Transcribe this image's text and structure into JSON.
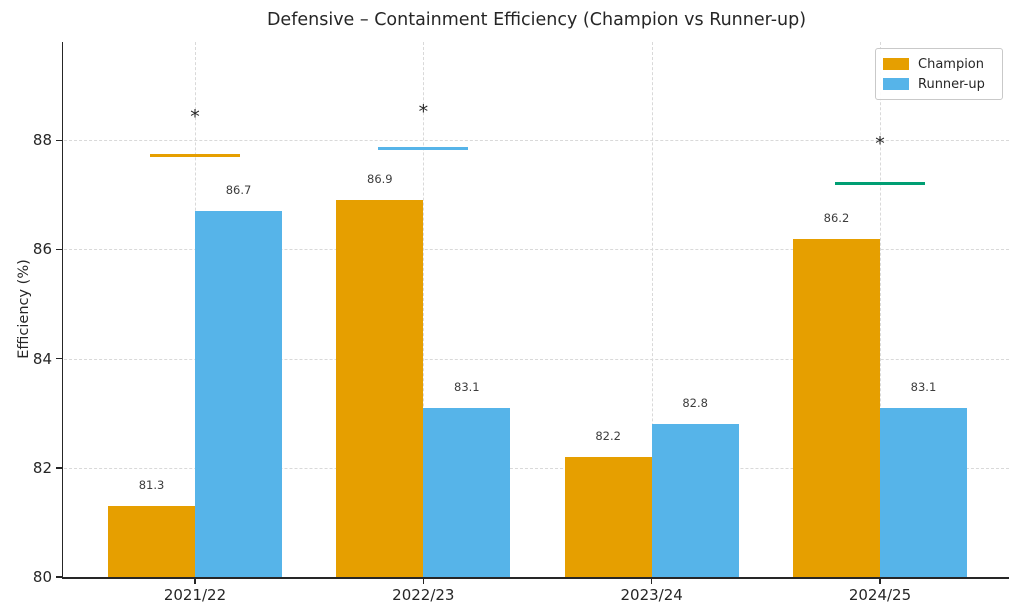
{
  "title": "Defensive – Containment Efficiency (Champion vs Runner-up)",
  "chart_data": {
    "type": "bar",
    "title": "Defensive – Containment Efficiency (Champion vs Runner-up)",
    "categories": [
      "2021/22",
      "2022/23",
      "2023/24",
      "2024/25"
    ],
    "series": [
      {
        "name": "Champion",
        "color": "#E69F00",
        "values": [
          81.3,
          86.9,
          82.2,
          86.2
        ]
      },
      {
        "name": "Runner-up",
        "color": "#56B4E9",
        "values": [
          86.7,
          83.1,
          82.8,
          83.1
        ]
      }
    ],
    "xlabel": "",
    "ylabel": "Efficiency (%)",
    "ylim": [
      80,
      89.8
    ],
    "yticks": [
      80,
      82,
      84,
      86,
      88
    ],
    "grid": true,
    "grid_style": "dashed",
    "legend_position": "upper right",
    "annotations": {
      "asterisks": [
        {
          "category": "2021/22",
          "y": 88.5,
          "symbol": "*"
        },
        {
          "category": "2022/23",
          "y": 88.6,
          "symbol": "*"
        },
        {
          "category": "2024/25",
          "y": 88.0,
          "symbol": "*"
        }
      ],
      "marker_lines": [
        {
          "category": "2021/22",
          "y": 87.72,
          "color": "#E69F00"
        },
        {
          "category": "2022/23",
          "y": 87.85,
          "color": "#56B4E9"
        },
        {
          "category": "2024/25",
          "y": 87.2,
          "color": "#009E73"
        }
      ]
    }
  }
}
